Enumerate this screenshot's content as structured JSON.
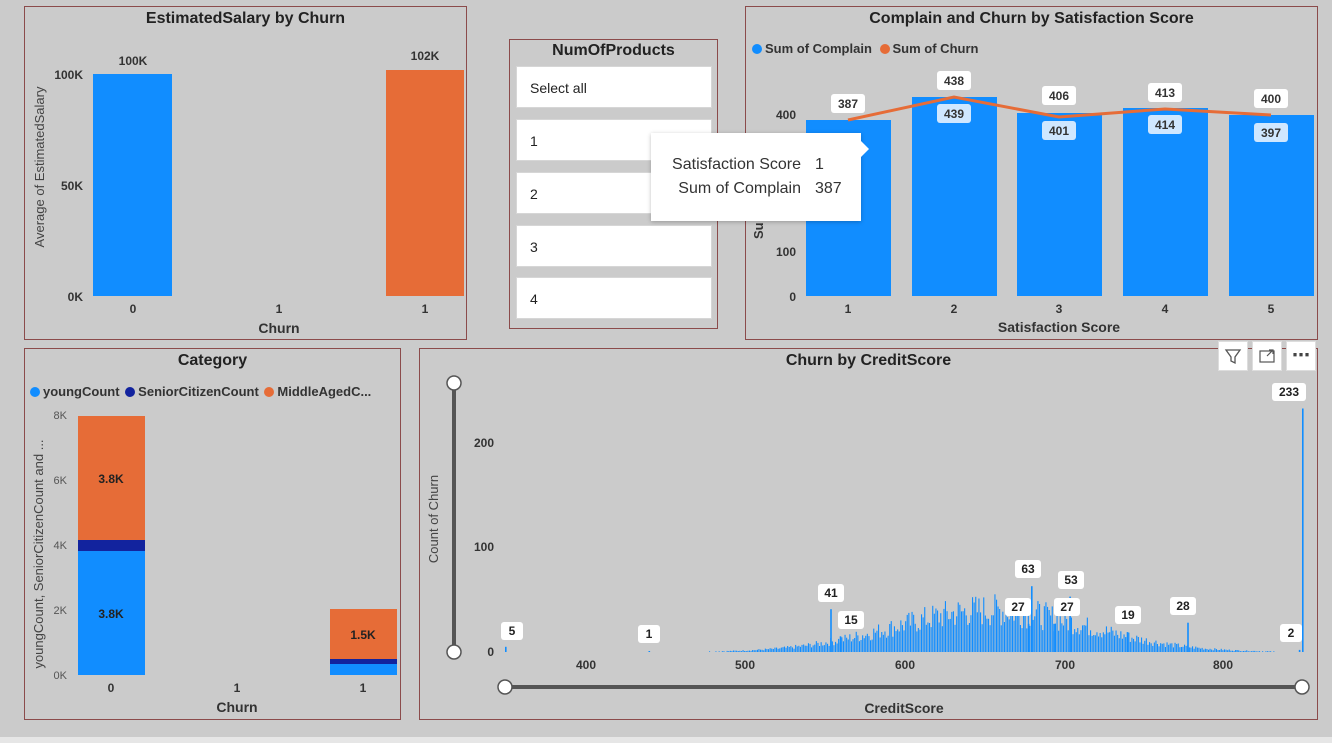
{
  "colors": {
    "blue": "#118dff",
    "orange": "#e66c37",
    "navy": "#12239e",
    "panel_border": "#8b4b4b",
    "background": "#cbcbcb"
  },
  "salary_chart": {
    "title": "EstimatedSalary by Churn",
    "ylabel": "Average of EstimatedSalary",
    "xlabel": "Churn",
    "yticks": [
      "100K",
      "50K",
      "0K"
    ],
    "xticks": [
      "0",
      "1",
      "1"
    ],
    "data_labels": [
      "100K",
      "102K"
    ]
  },
  "slicer": {
    "title": "NumOfProducts",
    "items": [
      "Select all",
      "1",
      "2",
      "3",
      "4"
    ]
  },
  "satisfaction_chart": {
    "title": "Complain and Churn by Satisfaction Score",
    "legend": [
      "Sum of Complain",
      "Sum of Churn"
    ],
    "ylabel": "Su",
    "xlabel": "Satisfaction Score",
    "yticks": [
      "400",
      "100",
      "0"
    ],
    "xticks": [
      "1",
      "2",
      "3",
      "4",
      "5"
    ],
    "complain_labels": [
      "",
      "439",
      "401",
      "414",
      "397"
    ],
    "churn_labels": [
      "387",
      "438",
      "406",
      "413",
      "400"
    ]
  },
  "tooltip": {
    "rows": [
      {
        "key": "Satisfaction Score",
        "value": "1"
      },
      {
        "key": "Sum of Complain",
        "value": "387"
      }
    ]
  },
  "category_chart": {
    "title": "Category",
    "legend": [
      "youngCount",
      "SeniorCitizenCount",
      "MiddleAgedC..."
    ],
    "ylabel": "youngCount, SeniorCitizenCount and ...",
    "xlabel": "Churn",
    "yticks": [
      "8K",
      "6K",
      "4K",
      "2K",
      "0K"
    ],
    "xticks": [
      "0",
      "1",
      "1"
    ],
    "labels": [
      "3.8K",
      "3.8K",
      "1.5K"
    ]
  },
  "credit_chart": {
    "title": "Churn by CreditScore",
    "ylabel": "Count of Churn",
    "xlabel": "CreditScore",
    "yticks": [
      "200",
      "100",
      "0"
    ],
    "xticks": [
      "400",
      "500",
      "600",
      "700",
      "800"
    ],
    "data_labels": [
      "5",
      "1",
      "41",
      "15",
      "27",
      "63",
      "27",
      "53",
      "19",
      "28",
      "2",
      "233"
    ]
  },
  "visual_header": {
    "icons": [
      "filter-icon",
      "focus-mode-icon",
      "more-options-icon"
    ],
    "more_glyph": "⋯"
  },
  "chart_data": [
    {
      "type": "bar",
      "title": "EstimatedSalary by Churn",
      "xlabel": "Churn",
      "ylabel": "Average of EstimatedSalary",
      "categories": [
        "0",
        "1"
      ],
      "values": [
        100000,
        102000
      ],
      "ylim": [
        0,
        100000
      ]
    },
    {
      "type": "bar",
      "title": "Complain and Churn by Satisfaction Score",
      "xlabel": "Satisfaction Score",
      "categories": [
        "1",
        "2",
        "3",
        "4",
        "5"
      ],
      "series": [
        {
          "name": "Sum of Complain",
          "type": "bar",
          "values": [
            387,
            439,
            401,
            414,
            397
          ]
        },
        {
          "name": "Sum of Churn",
          "type": "line",
          "values": [
            387,
            438,
            406,
            413,
            400
          ]
        }
      ],
      "ylim": [
        0,
        500
      ]
    },
    {
      "type": "bar",
      "title": "Category",
      "xlabel": "Churn",
      "categories": [
        "0",
        "1"
      ],
      "series": [
        {
          "name": "youngCount",
          "values": [
            3800,
            500
          ]
        },
        {
          "name": "SeniorCitizenCount",
          "values": [
            350,
            150
          ]
        },
        {
          "name": "MiddleAgedC...",
          "values": [
            3800,
            1500
          ]
        }
      ],
      "ylim": [
        0,
        8000
      ]
    },
    {
      "type": "bar",
      "title": "Churn by CreditScore",
      "xlabel": "CreditScore",
      "ylabel": "Count of Churn",
      "xlim": [
        350,
        850
      ],
      "ylim": [
        0,
        250
      ],
      "labeled_points": [
        {
          "x": 350,
          "y": 5
        },
        {
          "x": 440,
          "y": 1
        },
        {
          "x": 554,
          "y": 41
        },
        {
          "x": 560,
          "y": 15
        },
        {
          "x": 678,
          "y": 27
        },
        {
          "x": 680,
          "y": 63
        },
        {
          "x": 694,
          "y": 27
        },
        {
          "x": 704,
          "y": 53
        },
        {
          "x": 740,
          "y": 19
        },
        {
          "x": 778,
          "y": 28
        },
        {
          "x": 848,
          "y": 2
        },
        {
          "x": 850,
          "y": 233
        }
      ]
    }
  ]
}
